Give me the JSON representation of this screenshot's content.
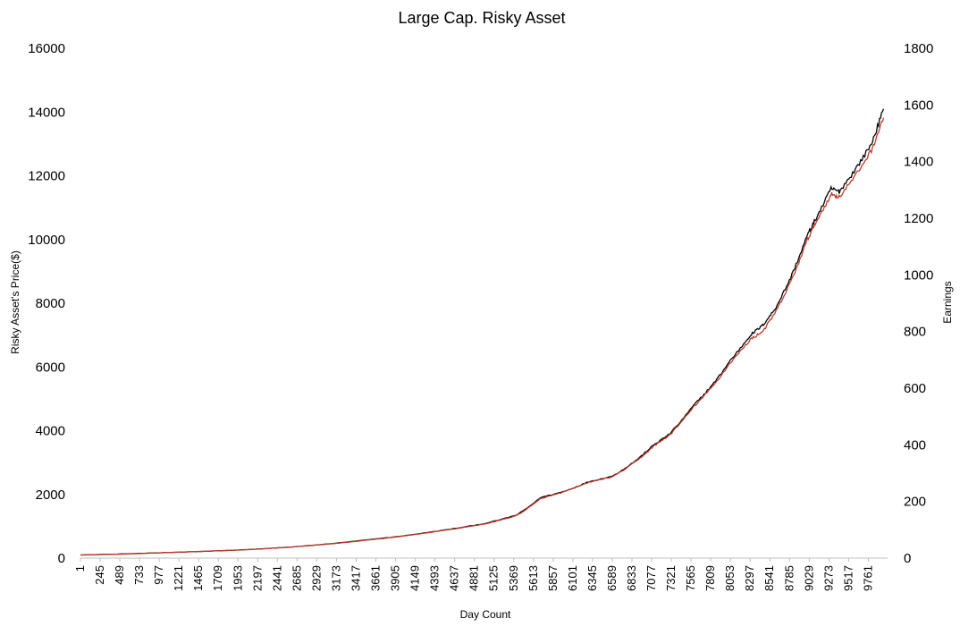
{
  "chart_data": {
    "type": "line",
    "title": "Large Cap. Risky Asset",
    "xlabel": "Day Count",
    "ylabel": "Risky Asset's Price($)",
    "y2label": "Earnings",
    "ylim": [
      0,
      16000
    ],
    "y2lim": [
      0,
      1800
    ],
    "xlim": [
      1,
      10000
    ],
    "left_ticks": [
      "0",
      "2000",
      "4000",
      "6000",
      "8000",
      "10000",
      "12000",
      "14000",
      "16000"
    ],
    "right_ticks": [
      "0",
      "200",
      "400",
      "600",
      "800",
      "1000",
      "1200",
      "1400",
      "1600",
      "1800"
    ],
    "x_ticks": [
      "1",
      "245",
      "489",
      "733",
      "977",
      "1221",
      "1465",
      "1709",
      "1953",
      "2197",
      "2441",
      "2685",
      "2929",
      "3173",
      "3417",
      "3661",
      "3905",
      "4149",
      "4393",
      "4637",
      "4881",
      "5125",
      "5369",
      "5613",
      "5857",
      "6101",
      "6345",
      "6589",
      "6833",
      "7077",
      "7321",
      "7565",
      "7809",
      "8053",
      "8297",
      "8541",
      "8785",
      "9029",
      "9273",
      "9517",
      "9761"
    ],
    "grid": false,
    "legend": "none",
    "series": [
      {
        "axis": "left",
        "color": "#000000",
        "x": [
          1,
          500,
          1000,
          1500,
          2000,
          2500,
          3000,
          3500,
          4000,
          4500,
          5000,
          5400,
          5700,
          6000,
          6300,
          6600,
          6900,
          7100,
          7300,
          7600,
          7850,
          8050,
          8300,
          8450,
          8600,
          8800,
          9000,
          9100,
          9300,
          9400,
          9600,
          9800,
          9950
        ],
        "values": [
          100,
          130,
          170,
          210,
          260,
          330,
          430,
          560,
          700,
          880,
          1080,
          1350,
          1900,
          2100,
          2400,
          2580,
          3100,
          3550,
          3900,
          4800,
          5500,
          6200,
          7000,
          7300,
          7800,
          8800,
          10100,
          10600,
          11600,
          11500,
          12200,
          13000,
          14100
        ]
      },
      {
        "axis": "right",
        "color": "#c0392b",
        "x": [
          1,
          500,
          1000,
          1500,
          2000,
          2500,
          3000,
          3500,
          4000,
          4500,
          5000,
          5400,
          5700,
          6000,
          6300,
          6600,
          6900,
          7100,
          7300,
          7600,
          7850,
          8050,
          8300,
          8450,
          8600,
          8800,
          9000,
          9100,
          9300,
          9400,
          9600,
          9800,
          9950
        ],
        "values": [
          11,
          14,
          19,
          24,
          29,
          37,
          48,
          62,
          78,
          98,
          120,
          150,
          210,
          235,
          268,
          288,
          345,
          395,
          435,
          535,
          612,
          690,
          772,
          800,
          862,
          975,
          1120,
          1180,
          1285,
          1275,
          1350,
          1440,
          1555
        ]
      }
    ]
  }
}
